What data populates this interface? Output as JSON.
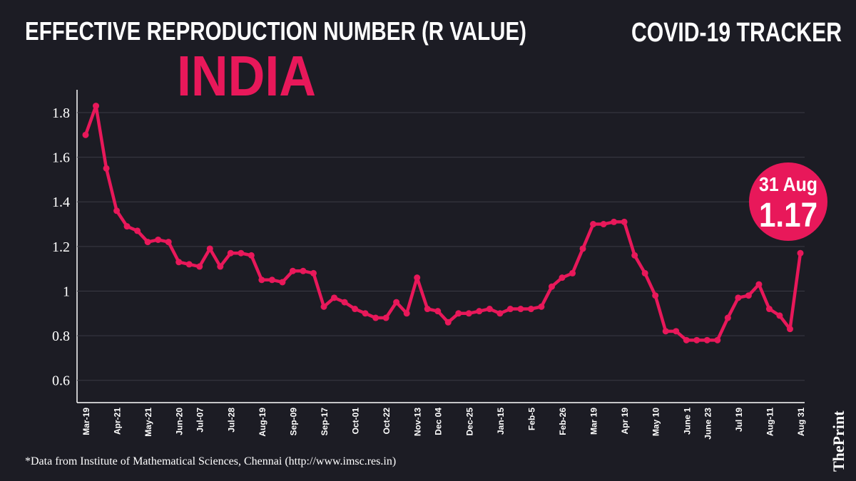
{
  "chart_data": {
    "type": "line",
    "title": "EFFECTIVE REPRODUCTION NUMBER (R VALUE)",
    "subtitle": "INDIA",
    "header_right": "COVID-19 TRACKER",
    "source": "*Data from Institute of Mathematical Sciences, Chennai (http://www.imsc.res.in)",
    "brand": "ThePrint",
    "annotation": "31 Aug",
    "color": "#e8185a",
    "categories": [
      "Mar-19",
      null,
      null,
      "Apr-21",
      null,
      null,
      "May-21",
      null,
      null,
      "Jun-20",
      null,
      "Jul-07",
      null,
      null,
      "Jul-28",
      null,
      null,
      "Aug-19",
      null,
      null,
      "Sep-09",
      null,
      null,
      "Sep-17",
      null,
      null,
      "Oct-01",
      null,
      null,
      "Oct-22",
      null,
      null,
      "Nov-13",
      null,
      "Dec 04",
      null,
      null,
      "Dec-25",
      null,
      null,
      "Jan-15",
      null,
      null,
      "Feb-5",
      null,
      null,
      "Feb-26",
      null,
      null,
      "Mar 19",
      null,
      null,
      "Apr 19",
      null,
      null,
      "May 10",
      null,
      null,
      "June 1",
      null,
      "June 23",
      null,
      null,
      "Jul 19",
      null,
      null,
      "Aug-11",
      null,
      null,
      "Aug 31"
    ],
    "values": [
      1.7,
      1.83,
      1.55,
      1.36,
      1.29,
      1.27,
      1.22,
      1.23,
      1.22,
      1.13,
      1.12,
      1.11,
      1.19,
      1.11,
      1.17,
      1.17,
      1.16,
      1.05,
      1.05,
      1.04,
      1.09,
      1.09,
      1.08,
      0.93,
      0.97,
      0.95,
      0.92,
      0.9,
      0.88,
      0.88,
      0.95,
      0.9,
      1.06,
      0.92,
      0.91,
      0.86,
      0.9,
      0.9,
      0.91,
      0.92,
      0.9,
      0.92,
      0.92,
      0.92,
      0.93,
      1.02,
      1.06,
      1.08,
      1.19,
      1.3,
      1.3,
      1.31,
      1.31,
      1.16,
      1.08,
      0.98,
      0.82,
      0.82,
      0.78,
      0.78,
      0.78,
      0.78,
      0.88,
      0.97,
      0.98,
      1.03,
      0.92,
      0.89,
      0.83,
      1.17
    ],
    "ylim": [
      0.5,
      1.9
    ],
    "yticks": [
      0.6,
      0.8,
      1,
      1.2,
      1.4,
      1.6,
      1.8
    ],
    "grid": true
  }
}
